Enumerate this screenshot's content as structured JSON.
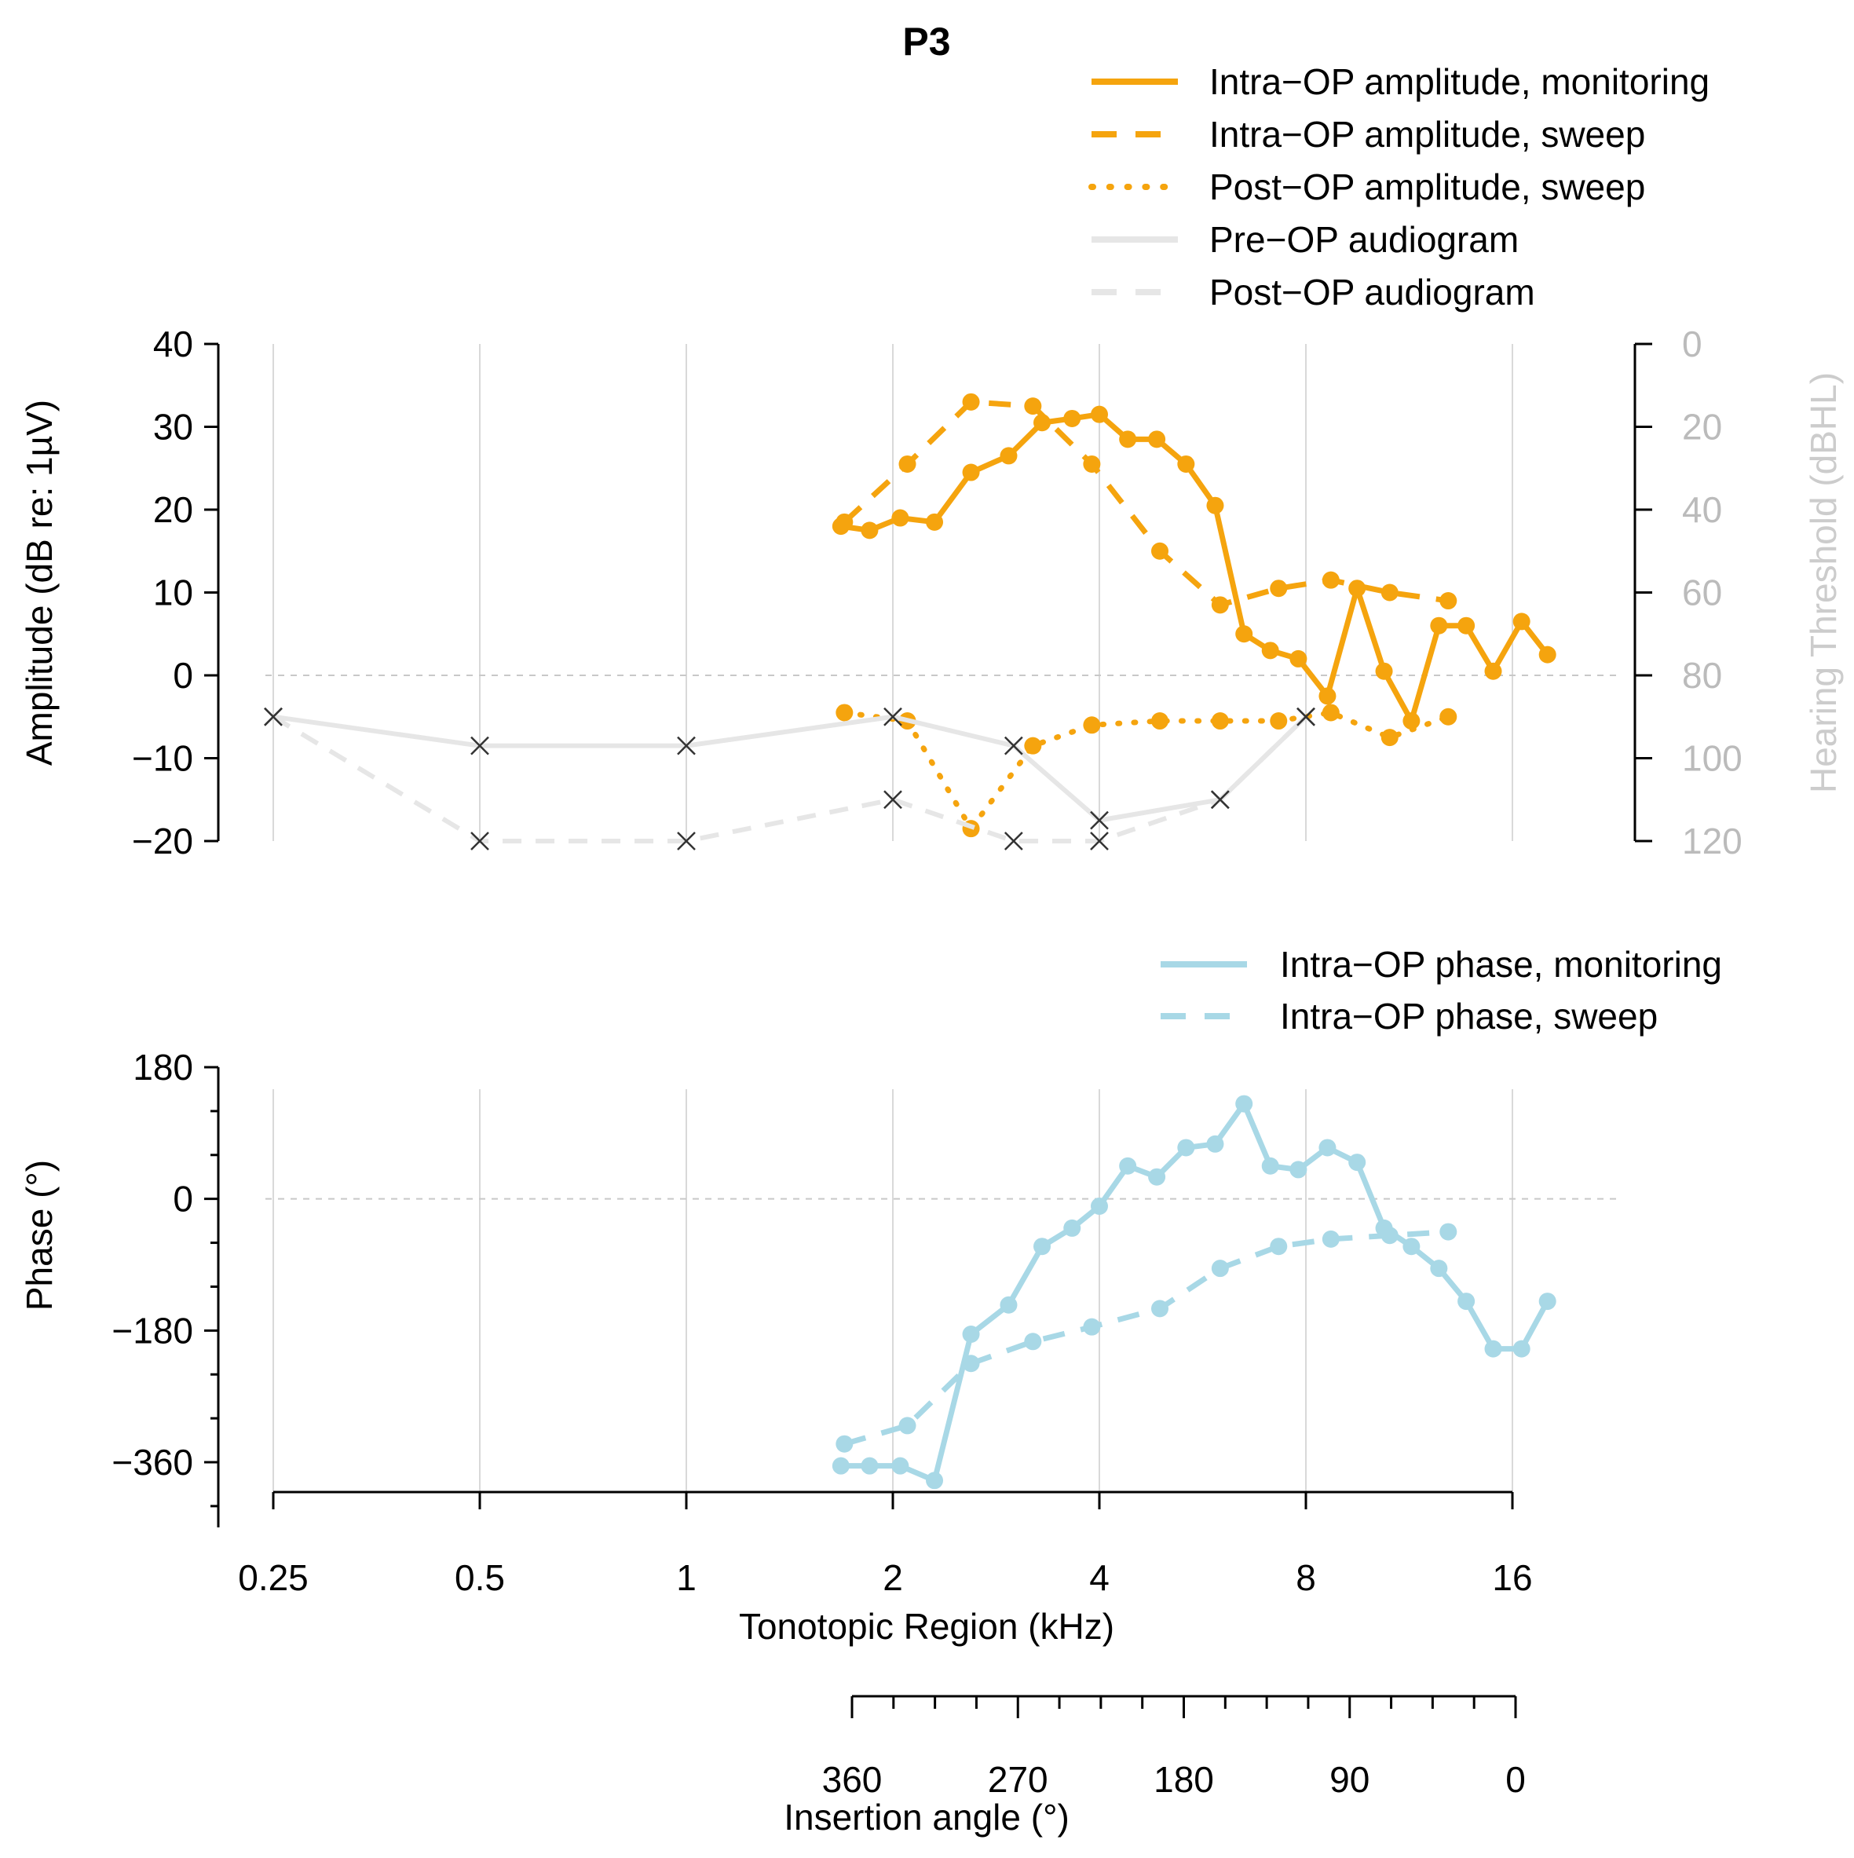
{
  "chart_data": [
    {
      "id": "amplitude",
      "type": "line",
      "title": "P3",
      "xlabel": "Tonotopic Region (kHz)",
      "x_scale": "log2",
      "xlim": [
        0.25,
        16
      ],
      "ylabel": "Amplitude (dB re: 1µV)",
      "ylim": [
        -20,
        40
      ],
      "yticks": [
        "40",
        "30",
        "20",
        "10",
        "0",
        "−10",
        "−20"
      ],
      "ytick_values": [
        40,
        30,
        20,
        10,
        0,
        -10,
        -20
      ],
      "y2label": "Hearing Threshold (dBHL)",
      "y2lim": [
        0,
        120
      ],
      "y2ticks": [
        "0",
        "20",
        "40",
        "60",
        "80",
        "100",
        "120"
      ],
      "y2tick_values": [
        0,
        20,
        40,
        60,
        80,
        100,
        120
      ],
      "legend": {
        "items": [
          {
            "label": "Intra−OP amplitude, monitoring",
            "color": "#f5a40e",
            "style": "solid"
          },
          {
            "label": "Intra−OP amplitude, sweep",
            "color": "#f5a40e",
            "style": "dashed"
          },
          {
            "label": "Post−OP amplitude, sweep",
            "color": "#f5a40e",
            "style": "dotted"
          },
          {
            "label": "Pre−OP audiogram",
            "color": "#e6e6e6",
            "style": "solid"
          },
          {
            "label": "Post−OP audiogram",
            "color": "#e6e6e6",
            "style": "dashed"
          }
        ]
      },
      "series": [
        {
          "name": "Intra−OP amplitude, monitoring",
          "color": "#f5a40e",
          "style": "solid",
          "markers": true,
          "axis": "left",
          "x": [
            1.68,
            1.85,
            2.05,
            2.3,
            2.6,
            2.95,
            3.3,
            3.65,
            4.0,
            4.4,
            4.85,
            5.35,
            5.9,
            6.5,
            7.1,
            7.8,
            8.6,
            9.5,
            10.4,
            11.4,
            12.5,
            13.7,
            15.0,
            16.5,
            18.0
          ],
          "y": [
            18,
            17.5,
            19,
            18.5,
            24.5,
            26.5,
            30.5,
            31,
            31.5,
            28.5,
            28.5,
            25.5,
            20.5,
            5,
            3,
            2,
            -2.5,
            10.5,
            0.5,
            -5.5,
            6,
            6,
            0.5,
            6.5,
            2.5
          ]
        },
        {
          "name": "Intra−OP amplitude, sweep",
          "color": "#f5a40e",
          "style": "dashed",
          "markers": true,
          "axis": "left",
          "x": [
            1.7,
            2.1,
            2.6,
            3.2,
            3.9,
            4.9,
            6.0,
            7.3,
            8.7,
            10.6,
            12.9
          ],
          "y": [
            18.5,
            25.5,
            33,
            32.5,
            25.5,
            15,
            8.5,
            10.5,
            11.5,
            10,
            9
          ]
        },
        {
          "name": "Post−OP amplitude, sweep",
          "color": "#f5a40e",
          "style": "dotted",
          "markers": true,
          "axis": "left",
          "x": [
            1.7,
            2.1,
            2.6,
            3.2,
            3.9,
            4.9,
            6.0,
            7.3,
            8.7,
            10.6,
            12.9
          ],
          "y": [
            -4.5,
            -5.5,
            -18.5,
            -8.5,
            -6,
            -5.5,
            -5.5,
            -5.5,
            -4.5,
            -7.5,
            -5
          ]
        },
        {
          "name": "Pre−OP audiogram",
          "color": "#e6e6e6",
          "style": "solid",
          "markers": "x",
          "axis": "right",
          "x": [
            0.25,
            0.5,
            1,
            2,
            3,
            4,
            6,
            8
          ],
          "y": [
            90,
            97,
            97,
            90,
            97,
            115,
            110,
            90
          ]
        },
        {
          "name": "Post−OP audiogram",
          "color": "#e6e6e6",
          "style": "dashed",
          "markers": "x",
          "axis": "right",
          "x": [
            0.25,
            0.5,
            1,
            2,
            3,
            4,
            6,
            8
          ],
          "y": [
            90,
            120,
            120,
            110,
            120,
            120,
            110,
            90
          ]
        }
      ]
    },
    {
      "id": "phase",
      "type": "line",
      "xlabel": "Tonotopic Region (kHz)",
      "x_scale": "log2",
      "xlim": [
        0.25,
        16
      ],
      "xticks": [
        "0.25",
        "0.5",
        "1",
        "2",
        "4",
        "8",
        "16"
      ],
      "xtick_values": [
        0.25,
        0.5,
        1,
        2,
        4,
        8,
        16
      ],
      "ylabel": "Phase (°)",
      "ylim": [
        -420,
        180
      ],
      "yticks": [
        "180",
        "0",
        "−180",
        "−360"
      ],
      "ytick_values": [
        180,
        0,
        -180,
        -360
      ],
      "x2label": "Insertion angle (°)",
      "x2ticks": [
        "360",
        "270",
        "180",
        "90",
        "0"
      ],
      "x2tick_values": [
        360,
        270,
        180,
        90,
        0
      ],
      "x2lim": [
        360,
        0
      ],
      "legend": {
        "items": [
          {
            "label": "Intra−OP phase, monitoring",
            "color": "#a8d8e6",
            "style": "solid"
          },
          {
            "label": "Intra−OP phase, sweep",
            "color": "#a8d8e6",
            "style": "dashed"
          }
        ]
      },
      "series": [
        {
          "name": "Intra−OP phase, monitoring",
          "color": "#a8d8e6",
          "style": "solid",
          "markers": true,
          "x": [
            1.68,
            1.85,
            2.05,
            2.3,
            2.6,
            2.95,
            3.3,
            3.65,
            4.0,
            4.4,
            4.85,
            5.35,
            5.9,
            6.5,
            7.1,
            7.8,
            8.6,
            9.5,
            10.4,
            11.4,
            12.5,
            13.7,
            15.0,
            16.5,
            18.0
          ],
          "y": [
            -365,
            -365,
            -365,
            -385,
            -185,
            -145,
            -65,
            -40,
            -10,
            45,
            30,
            70,
            75,
            130,
            45,
            40,
            70,
            50,
            -40,
            -65,
            -95,
            -140,
            -205,
            -205,
            -140
          ]
        },
        {
          "name": "Intra−OP phase, sweep",
          "color": "#a8d8e6",
          "style": "dashed",
          "markers": true,
          "x": [
            1.7,
            2.1,
            2.6,
            3.2,
            3.9,
            4.9,
            6.0,
            7.3,
            8.7,
            10.6,
            12.9
          ],
          "y": [
            -335,
            -310,
            -225,
            -195,
            -175,
            -150,
            -95,
            -65,
            -55,
            -50,
            -45
          ]
        }
      ]
    }
  ]
}
